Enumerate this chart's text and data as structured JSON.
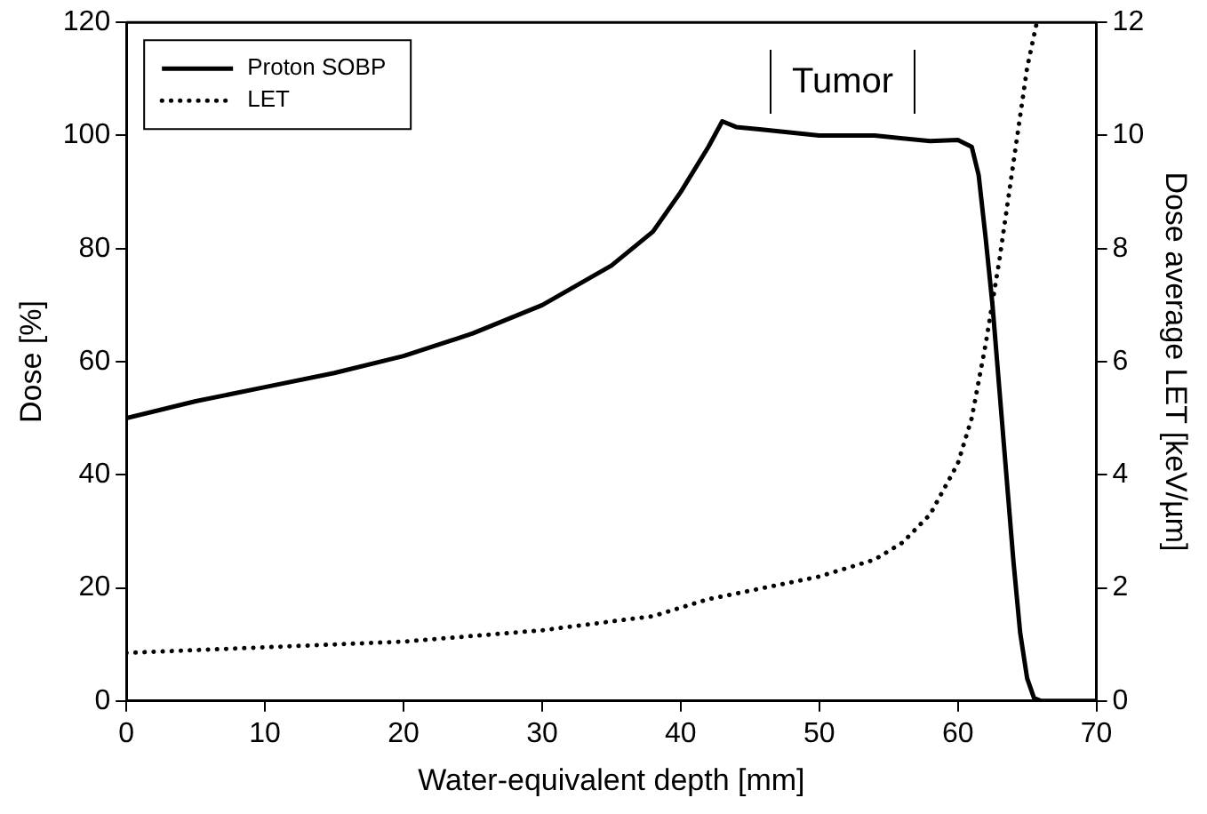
{
  "chart_data": {
    "type": "line",
    "xlabel": "Water-equivalent depth [mm]",
    "ylabel": "Dose [%]",
    "y2label": "Dose average LET [keV/µm]",
    "xlim": [
      0,
      70
    ],
    "xticks": [
      0,
      10,
      20,
      30,
      40,
      50,
      60,
      70
    ],
    "ylim": [
      0,
      120
    ],
    "yticks": [
      0,
      20,
      40,
      60,
      80,
      100,
      120
    ],
    "y2lim": [
      0,
      12
    ],
    "y2ticks": [
      0,
      2,
      4,
      6,
      8,
      10,
      12
    ],
    "legend": "top left",
    "marker": "none",
    "grid": false,
    "annotations": [
      "Tumor"
    ],
    "series": [
      {
        "name": "Proton SOBP",
        "color": "#000000",
        "line_style": "solid",
        "x": [
          0,
          5,
          10,
          15,
          20,
          25,
          30,
          35,
          38,
          40,
          42,
          43,
          44,
          46,
          48,
          50,
          54,
          58,
          60,
          61,
          61.5,
          62,
          62.5,
          63,
          63.5,
          64,
          64.5,
          65,
          65.5,
          66,
          70
        ],
        "values": [
          50,
          53,
          55.5,
          58,
          61,
          65,
          70,
          77,
          83,
          90,
          98,
          102.5,
          101.5,
          101,
          100.5,
          100,
          100,
          99,
          99.2,
          98,
          93,
          82,
          70,
          55,
          40,
          25,
          12,
          4,
          0.5,
          0,
          0
        ]
      },
      {
        "name": "LET",
        "color": "#000000",
        "line_style": "dotted",
        "axis": "y2",
        "x": [
          0,
          10,
          20,
          30,
          38,
          42,
          46,
          50,
          54,
          56,
          58,
          60,
          61,
          62,
          63,
          64,
          65,
          65.7
        ],
        "values": [
          0.85,
          0.95,
          1.05,
          1.25,
          1.5,
          1.8,
          2.0,
          2.2,
          2.5,
          2.8,
          3.3,
          4.2,
          5,
          6.3,
          7.8,
          9.5,
          11.2,
          12
        ]
      }
    ]
  }
}
